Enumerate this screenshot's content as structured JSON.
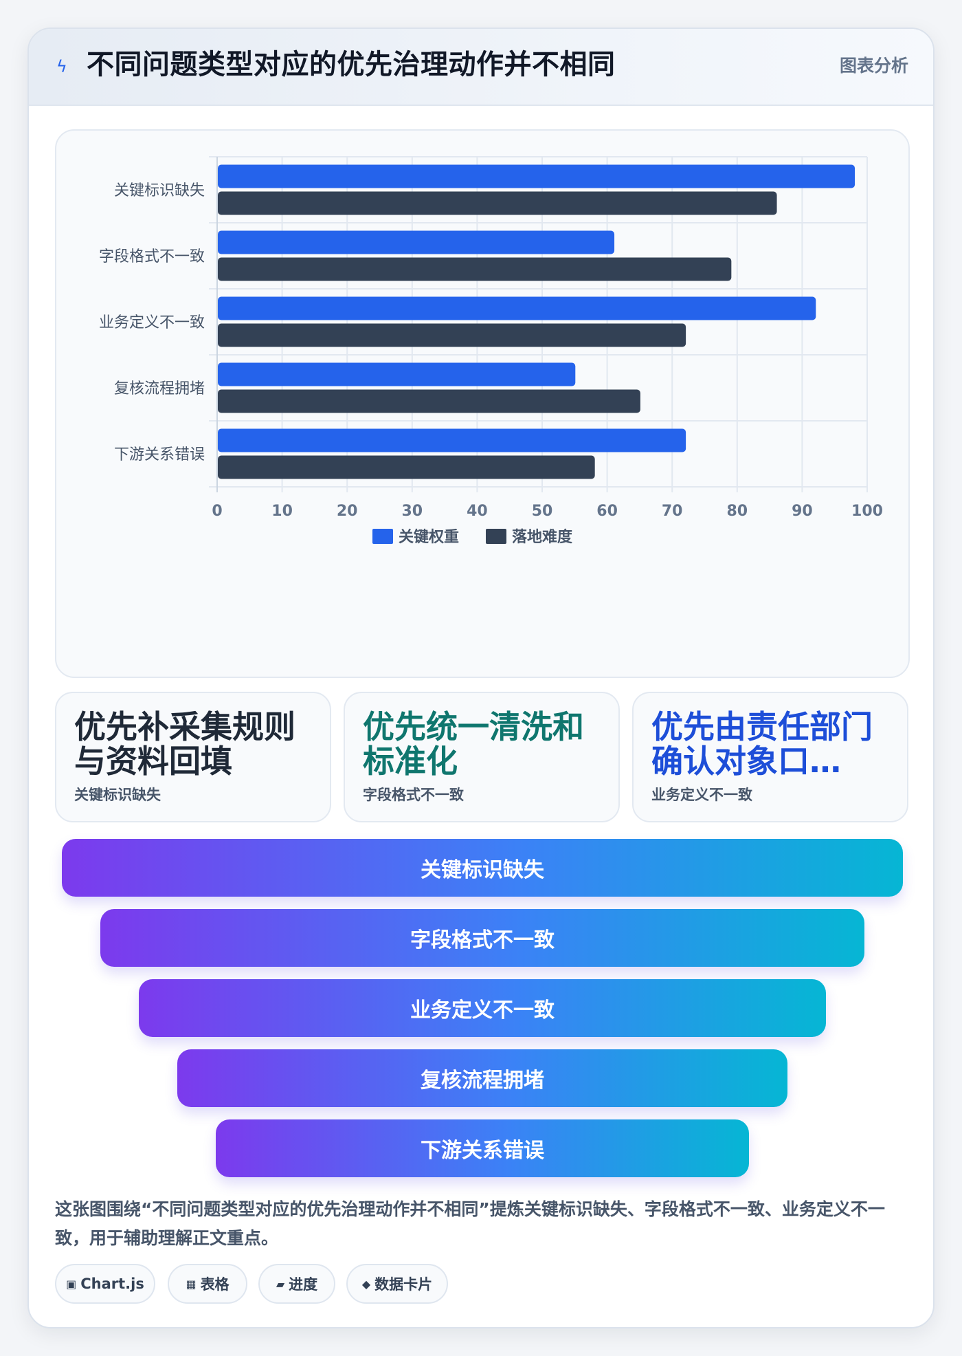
{
  "header": {
    "title": "不同问题类型对应的优先治理动作并不相同",
    "tag": "图表分析",
    "icon": "lightning-icon"
  },
  "chart_data": {
    "type": "bar",
    "orientation": "horizontal",
    "categories": [
      "关键标识缺失",
      "字段格式不一致",
      "业务定义不一致",
      "复核流程拥堵",
      "下游关系错误"
    ],
    "series": [
      {
        "name": "关键权重",
        "values": [
          98,
          61,
          92,
          55,
          72
        ],
        "color": "#2563eb"
      },
      {
        "name": "落地难度",
        "values": [
          86,
          79,
          72,
          65,
          58
        ],
        "color": "#334155"
      }
    ],
    "xlim": [
      0,
      100
    ],
    "xticks": [
      0,
      10,
      20,
      30,
      40,
      50,
      60,
      70,
      80,
      90,
      100
    ],
    "grid": true,
    "legend": "bottom"
  },
  "cards": [
    {
      "text": "优先补采集规则与资料回填",
      "sub": "关键标识缺失",
      "color": "#1f2937"
    },
    {
      "text": "优先统一清洗和标准化",
      "sub": "字段格式不一致",
      "color": "#0f766e"
    },
    {
      "text": "优先由责任部门确认对象口…",
      "sub": "业务定义不一致",
      "color": "#1d4ed8"
    }
  ],
  "funnel": [
    "关键标识缺失",
    "字段格式不一致",
    "业务定义不一致",
    "复核流程拥堵",
    "下游关系错误"
  ],
  "description": "这张图围绕“不同问题类型对应的优先治理动作并不相同”提炼关键标识缺失、字段格式不一致、业务定义不一致，用于辅助理解正文重点。",
  "chips": [
    {
      "icon": "▣",
      "label": "Chart.js"
    },
    {
      "icon": "▦",
      "label": "表格"
    },
    {
      "icon": "▰",
      "label": "进度"
    },
    {
      "icon": "◆",
      "label": "数据卡片"
    }
  ]
}
